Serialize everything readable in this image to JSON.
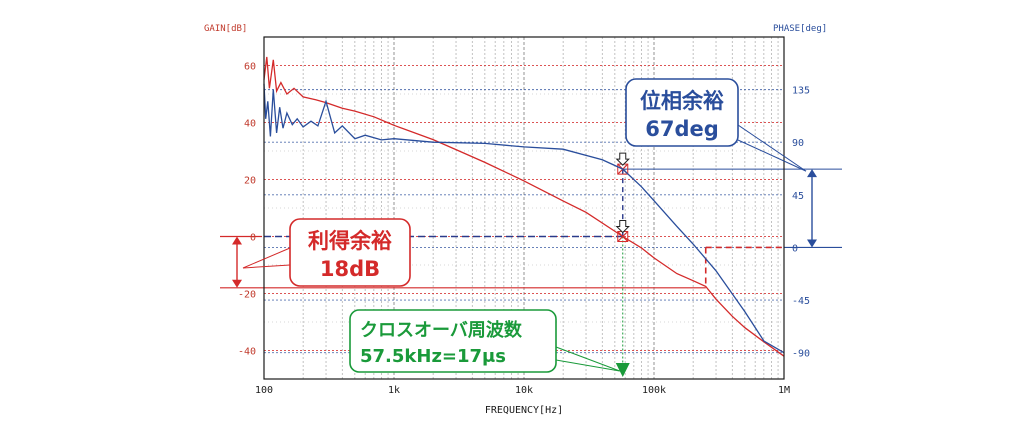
{
  "chart_data": {
    "type": "line",
    "xscale": "log",
    "xlabel": "FREQUENCY[Hz]",
    "ylabel_left": "GAIN[dB]",
    "ylabel_right": "PHASE[deg]",
    "xlim": [
      100,
      1000000
    ],
    "ylim_left": [
      -50,
      70
    ],
    "ylim_right": [
      -112.5,
      180
    ],
    "xticks": [
      {
        "value": 100,
        "label": "100"
      },
      {
        "value": 1000,
        "label": "1k"
      },
      {
        "value": 10000,
        "label": "10k"
      },
      {
        "value": 100000,
        "label": "100k"
      },
      {
        "value": 1000000,
        "label": "1M"
      }
    ],
    "yticks_left": [
      {
        "value": 60,
        "label": "60"
      },
      {
        "value": 40,
        "label": "40"
      },
      {
        "value": 20,
        "label": "20"
      },
      {
        "value": 0,
        "label": "0"
      },
      {
        "value": -20,
        "label": "-20"
      },
      {
        "value": -40,
        "label": "-40"
      }
    ],
    "yticks_right": [
      {
        "value": 135,
        "label": "135"
      },
      {
        "value": 90,
        "label": "90"
      },
      {
        "value": 45,
        "label": "45"
      },
      {
        "value": 0,
        "label": "0"
      },
      {
        "value": -45,
        "label": "-45"
      },
      {
        "value": -90,
        "label": "-90"
      }
    ],
    "grid": true,
    "colors": {
      "gain": "#d42a2a",
      "phase": "#2a4e9c",
      "crossover": "#1a9a3a",
      "axis_left": "#c0392b",
      "axis_right": "#2a4e9c"
    },
    "series": [
      {
        "key": "gain",
        "axis": "left",
        "x": [
          100,
          105,
          110,
          118,
          125,
          135,
          150,
          170,
          200,
          250,
          300,
          400,
          500,
          700,
          1000,
          2000,
          3000,
          5000,
          10000,
          20000,
          30000,
          57500,
          80000,
          100000,
          150000,
          200000,
          250000,
          300000,
          400000,
          500000,
          700000,
          1000000
        ],
        "values": [
          55,
          63,
          52,
          62,
          51,
          54,
          50,
          52,
          49,
          48,
          47,
          45,
          44,
          42,
          39,
          34,
          30.5,
          26,
          19.5,
          12.5,
          8.5,
          0,
          -4,
          -7.5,
          -13,
          -15.5,
          -17.5,
          -22,
          -28,
          -32,
          -37,
          -42
        ]
      },
      {
        "key": "phase",
        "axis": "right",
        "x": [
          100,
          103,
          107,
          112,
          118,
          125,
          132,
          140,
          150,
          165,
          180,
          200,
          230,
          260,
          300,
          350,
          400,
          500,
          600,
          800,
          1000,
          2000,
          5000,
          10000,
          20000,
          40000,
          57500,
          80000,
          100000,
          150000,
          200000,
          300000,
          500000,
          700000,
          1000000
        ],
        "values": [
          140,
          110,
          125,
          95,
          135,
          98,
          120,
          102,
          115,
          105,
          110,
          103,
          108,
          104,
          125,
          98,
          104,
          93,
          96,
          92,
          93,
          90,
          89,
          86,
          84,
          75,
          67,
          52,
          40,
          18,
          3,
          -20,
          -55,
          -80,
          -90
        ]
      }
    ],
    "annotations": {
      "phase_margin": {
        "title": "位相余裕",
        "value": "67deg"
      },
      "gain_margin": {
        "title": "利得余裕",
        "value": "18dB"
      },
      "crossover": {
        "title": "クロスオーバ周波数",
        "value": "57.5kHz=17μs"
      }
    }
  }
}
